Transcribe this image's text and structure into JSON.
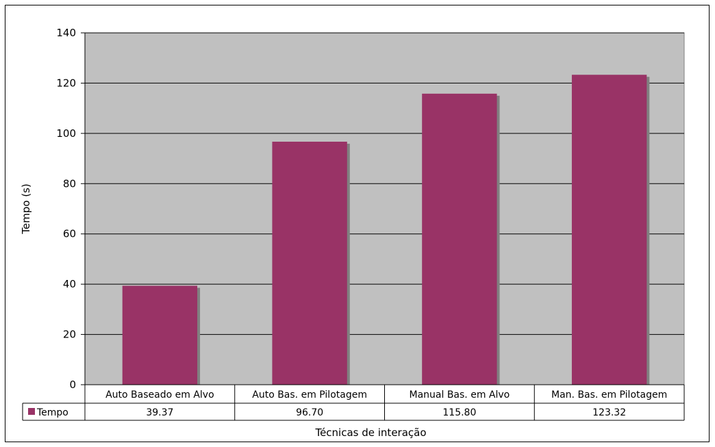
{
  "chart_data": {
    "type": "bar",
    "categories": [
      "Auto Baseado em Alvo",
      "Auto Bas. em Pilotagem",
      "Manual Bas. em Alvo",
      "Man. Bas. em Pilotagem"
    ],
    "series": [
      {
        "name": "Tempo",
        "values": [
          39.37,
          96.7,
          115.8,
          123.32
        ],
        "value_labels": [
          "39.37",
          "96.70",
          "115.80",
          "123.32"
        ],
        "color": "#993366"
      }
    ],
    "xlabel": "Técnicas de interação",
    "ylabel": "Tempo (s)",
    "ylim": [
      0,
      140
    ],
    "yticks": [
      0,
      20,
      40,
      60,
      80,
      100,
      120,
      140
    ],
    "grid": true,
    "data_table": true,
    "plot_background": "#c0c0c0",
    "shadow_color": "#808080"
  }
}
